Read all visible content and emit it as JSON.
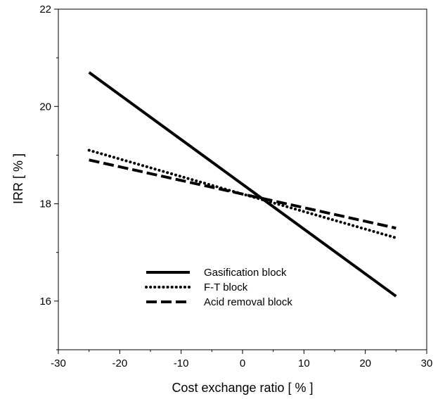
{
  "chart_data": {
    "type": "line",
    "xlabel": "Cost exchange ratio [ % ]",
    "ylabel": "IRR [ % ]",
    "xlim": [
      -30,
      30
    ],
    "ylim": [
      15,
      22
    ],
    "x_ticks": [
      "-30",
      "-20",
      "-10",
      "0",
      "10",
      "20",
      "30"
    ],
    "y_ticks": [
      "16",
      "18",
      "20",
      "22"
    ],
    "legend_position": "lower-left",
    "grid": false,
    "series": [
      {
        "name": "Gasification block",
        "style": "solid",
        "color": "#000000",
        "x": [
          -25,
          25
        ],
        "y": [
          20.7,
          16.1
        ]
      },
      {
        "name": "F-T block",
        "style": "dotted",
        "color": "#000000",
        "x": [
          -25,
          25
        ],
        "y": [
          19.1,
          17.3
        ]
      },
      {
        "name": "Acid removal block",
        "style": "dashed",
        "color": "#000000",
        "x": [
          -25,
          25
        ],
        "y": [
          18.9,
          17.5
        ]
      }
    ]
  }
}
